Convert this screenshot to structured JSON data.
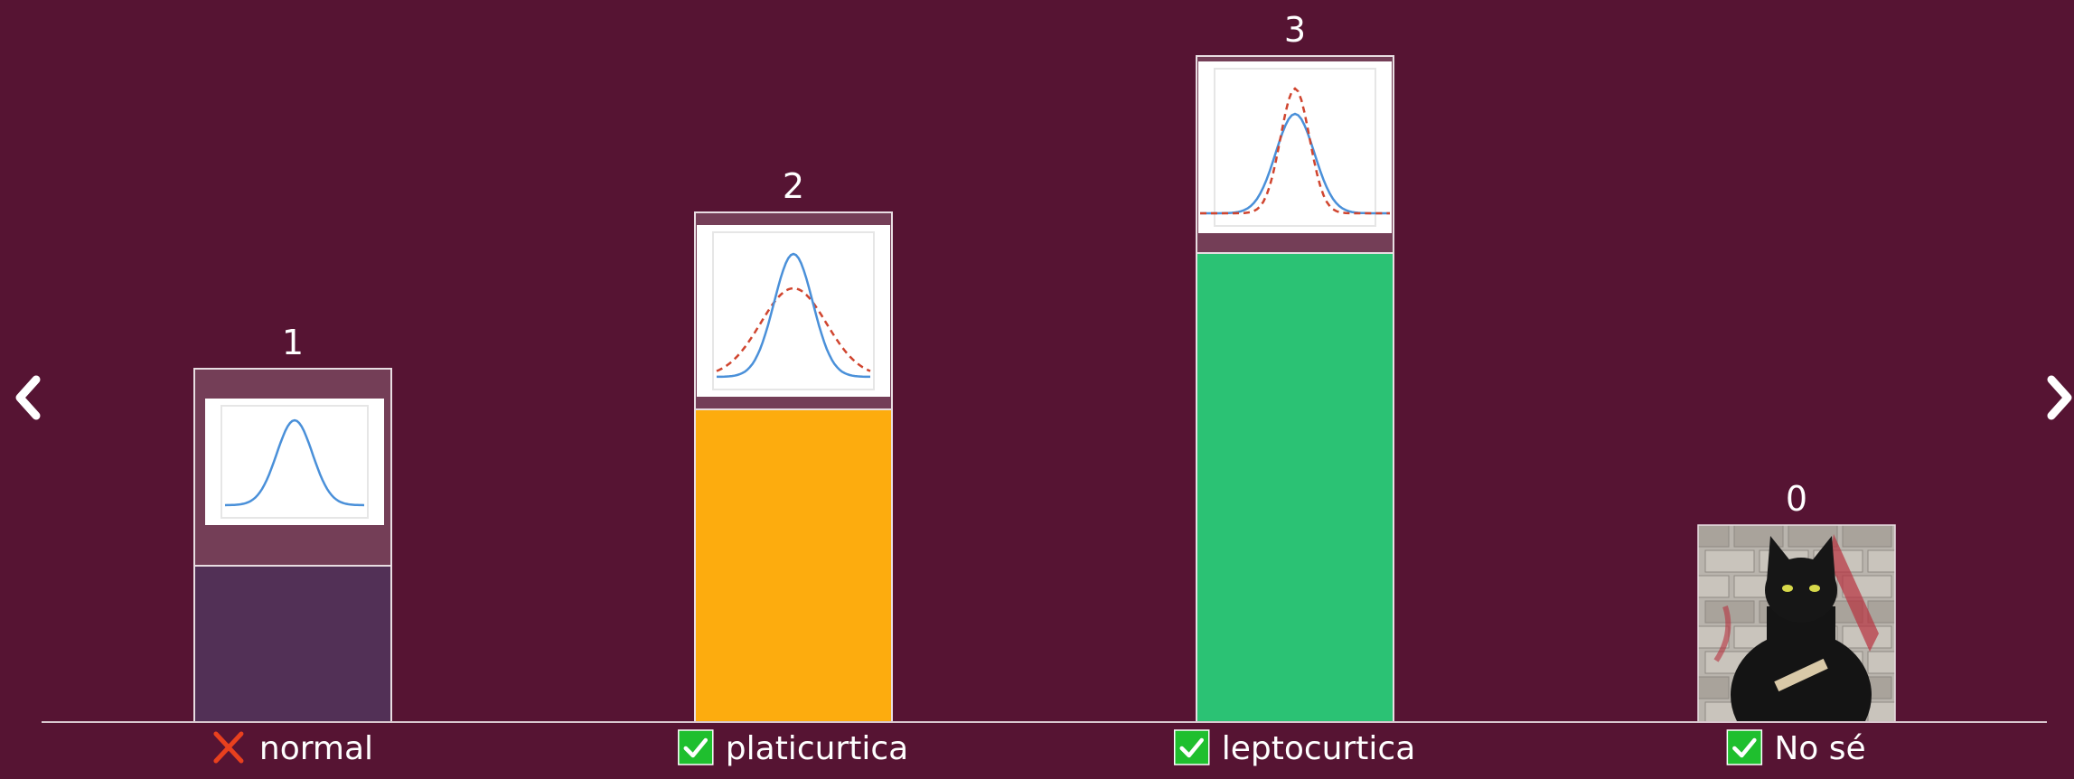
{
  "chart_data": {
    "type": "bar",
    "categories": [
      "normal",
      "platicurtica",
      "leptocurtica",
      "No sé"
    ],
    "values": [
      1,
      2,
      3,
      0
    ],
    "value_labels": [
      "1",
      "2",
      "3",
      "0"
    ],
    "ylim": [
      0,
      3
    ],
    "bar_colors": [
      "#523056",
      "#fdac0e",
      "#2bc274",
      "#561433"
    ],
    "correct": [
      false,
      true,
      true,
      true
    ],
    "bar_images": [
      "normal-curve-thumbnail",
      "platykurtic-curve-thumbnail",
      "leptokurtic-curve-thumbnail",
      "black-cat-photo"
    ],
    "grid": false,
    "legend": "none"
  },
  "colors": {
    "background": "#561433",
    "axis": "#d9c7cf",
    "bar_outline": "#e8dde2",
    "check_green": "#1fbf2e",
    "cross_red": "#e8401e",
    "normal_curve": "#4a90d9",
    "reference_curve": "#d0452f"
  },
  "icons": {
    "prev": "chevron-left-icon",
    "next": "chevron-right-icon",
    "correct": "checkmark-icon",
    "incorrect": "cross-icon"
  }
}
